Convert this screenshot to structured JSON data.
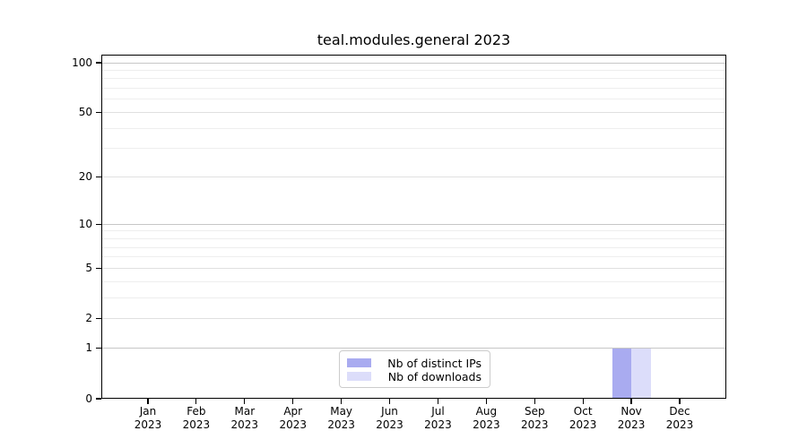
{
  "title": "teal.modules.general 2023",
  "chart_data": {
    "type": "bar",
    "title": "teal.modules.general 2023",
    "categories": [
      "Jan",
      "Feb",
      "Mar",
      "Apr",
      "May",
      "Jun",
      "Jul",
      "Aug",
      "Sep",
      "Oct",
      "Nov",
      "Dec"
    ],
    "year_label": "2023",
    "series": [
      {
        "name": "Nb of distinct IPs",
        "color": "#a9abf0",
        "values": [
          0,
          0,
          0,
          0,
          0,
          0,
          0,
          0,
          0,
          0,
          1,
          0
        ]
      },
      {
        "name": "Nb of downloads",
        "color": "#dcddfa",
        "values": [
          0,
          0,
          0,
          0,
          0,
          0,
          0,
          0,
          0,
          0,
          1,
          0
        ]
      }
    ],
    "xlabel": "",
    "ylabel": "",
    "yscale": "log1p",
    "ylim": [
      0,
      112
    ],
    "y_ticks": [
      0,
      1,
      2,
      5,
      10,
      20,
      50,
      100
    ],
    "y_major_gridlines": [
      1,
      10,
      100
    ],
    "y_labeled_minor_gridlines": [
      2,
      5,
      20,
      50
    ],
    "y_minor_gridlines": [
      3,
      4,
      6,
      7,
      8,
      9,
      30,
      40,
      60,
      70,
      80,
      90
    ],
    "grid": true,
    "legend_position": "lower center"
  },
  "colors": {
    "background": "#ffffff",
    "axis": "#000000",
    "grid_major": "#c6c6c6",
    "grid_labeled_minor": "#e0e0e0",
    "grid_minor": "#eeeeee",
    "legend_border": "#cccccc",
    "bar_distinct_ips": "#a9abf0",
    "bar_downloads": "#dcddfa"
  }
}
